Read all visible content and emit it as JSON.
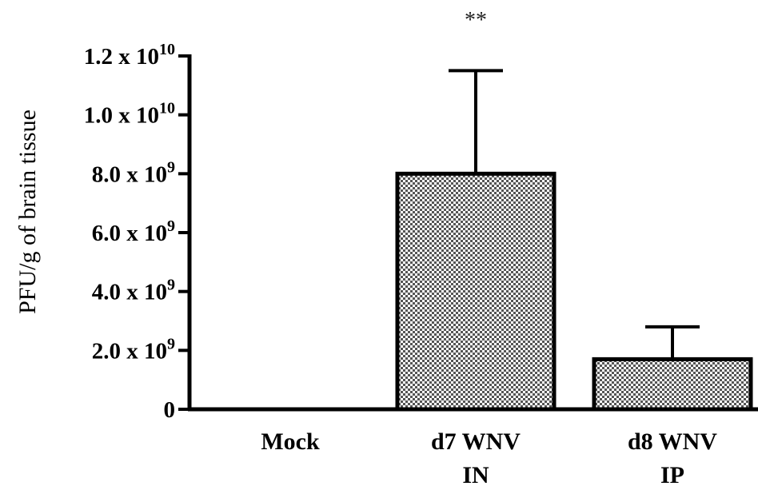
{
  "chart_data": {
    "type": "bar",
    "ylabel": "PFU/g of brain tissue",
    "xlabel": "",
    "title": "",
    "categories": [
      [
        "Mock"
      ],
      [
        "d7 WNV",
        "IN"
      ],
      [
        "d8 WNV",
        "IP"
      ]
    ],
    "values": [
      0,
      8000000000.0,
      1700000000.0
    ],
    "error_upper": [
      0,
      11500000000.0,
      2800000000.0
    ],
    "ylim": [
      0,
      12000000000.0
    ],
    "yticks": [
      {
        "value": 0,
        "mantissa": "0",
        "exponent": ""
      },
      {
        "value": 2000000000.0,
        "mantissa": "2.0 x 10",
        "exponent": "9"
      },
      {
        "value": 4000000000.0,
        "mantissa": "4.0 x 10",
        "exponent": "9"
      },
      {
        "value": 6000000000.0,
        "mantissa": "6.0 x 10",
        "exponent": "9"
      },
      {
        "value": 8000000000.0,
        "mantissa": "8.0 x 10",
        "exponent": "9"
      },
      {
        "value": 10000000000.0,
        "mantissa": "1.0 x 10",
        "exponent": "10"
      },
      {
        "value": 12000000000.0,
        "mantissa": "1.2 x 10",
        "exponent": "10"
      }
    ],
    "annotations": [
      {
        "text": "**",
        "category_index": 1
      }
    ],
    "bar_fill": "checkered gray",
    "grid": false
  }
}
